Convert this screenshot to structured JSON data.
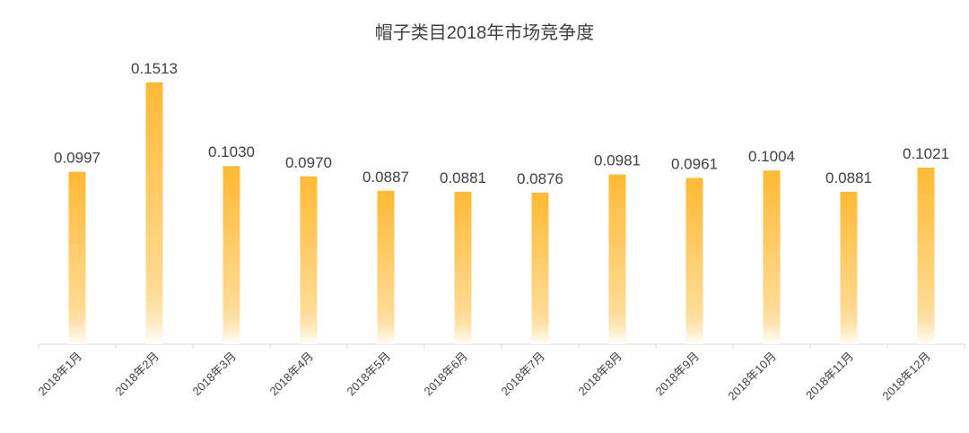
{
  "chart_data": {
    "type": "bar",
    "title": "帽子类目2018年市场竞争度",
    "categories": [
      "2018年1月",
      "2018年2月",
      "2018年3月",
      "2018年4月",
      "2018年5月",
      "2018年6月",
      "2018年7月",
      "2018年8月",
      "2018年9月",
      "2018年10月",
      "2018年11月",
      "2018年12月"
    ],
    "values": [
      0.0997,
      0.1513,
      0.103,
      0.097,
      0.0887,
      0.0881,
      0.0876,
      0.0981,
      0.0961,
      0.1004,
      0.0881,
      0.1021
    ],
    "value_labels": [
      "0.0997",
      "0.1513",
      "0.1030",
      "0.0970",
      "0.0887",
      "0.0881",
      "0.0876",
      "0.0981",
      "0.0961",
      "0.1004",
      "0.0881",
      "0.1021"
    ],
    "xlabel": "",
    "ylabel": "",
    "ylim": [
      0,
      0.16
    ],
    "grid": false,
    "legend": "none",
    "bar_color": "#FFB933",
    "bar_fade_color": "#FFFFFF",
    "axis_color": "#D9D9D9"
  }
}
